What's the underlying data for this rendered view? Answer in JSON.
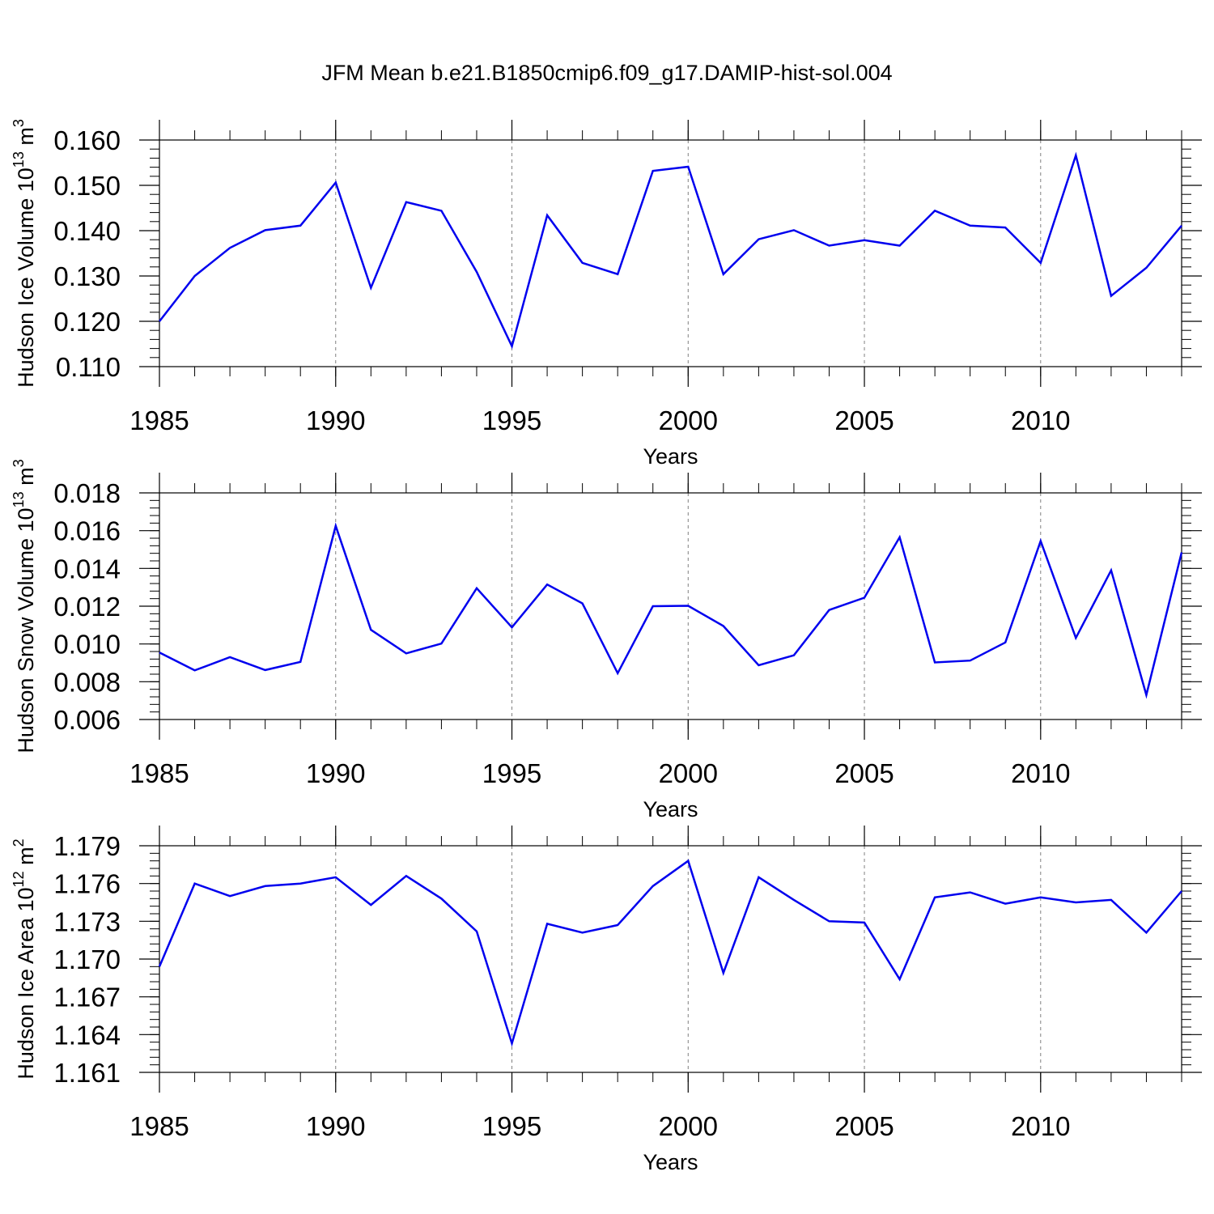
{
  "title": "JFM Mean b.e21.B1850cmip6.f09_g17.DAMIP-hist-sol.004",
  "colors": {
    "line": "#0000ee",
    "axis": "#000000",
    "grid": "#808080"
  },
  "chart_data": [
    {
      "type": "line",
      "ylabel_main": "Hudson Ice Volume 10",
      "ylabel_exp": "13",
      "ylabel_unit": "m",
      "ylabel_unit_exp": "3",
      "xlabel": "Years",
      "xlim": [
        1985,
        2014
      ],
      "ylim": [
        0.11,
        0.16
      ],
      "x_ticks": [
        1985,
        1990,
        1995,
        2000,
        2005,
        2010
      ],
      "x_tick_labels": [
        "1985",
        "1990",
        "1995",
        "2000",
        "2005",
        "2010"
      ],
      "y_ticks": [
        0.11,
        0.12,
        0.13,
        0.14,
        0.15,
        0.16
      ],
      "y_tick_labels": [
        "0.110",
        "0.120",
        "0.130",
        "0.140",
        "0.150",
        "0.160"
      ],
      "grid_x": [
        1990,
        1995,
        2000,
        2005,
        2010
      ],
      "series": [
        {
          "name": "Hudson Ice Volume",
          "x": [
            1985,
            1986,
            1987,
            1988,
            1989,
            1990,
            1991,
            1992,
            1993,
            1994,
            1995,
            1996,
            1997,
            1998,
            1999,
            2000,
            2001,
            2002,
            2003,
            2004,
            2005,
            2006,
            2007,
            2008,
            2009,
            2010,
            2011,
            2012,
            2013,
            2014
          ],
          "values": [
            0.12,
            0.13,
            0.1362,
            0.1401,
            0.1411,
            0.1506,
            0.1274,
            0.1463,
            0.1444,
            0.1309,
            0.1145,
            0.1434,
            0.1329,
            0.1304,
            0.1532,
            0.1541,
            0.1304,
            0.1381,
            0.1401,
            0.1367,
            0.1379,
            0.1367,
            0.1444,
            0.1411,
            0.1407,
            0.1329,
            0.1566,
            0.1256,
            0.1318,
            0.1411
          ]
        }
      ]
    },
    {
      "type": "line",
      "ylabel_main": "Hudson Snow Volume 10",
      "ylabel_exp": "13",
      "ylabel_unit": "m",
      "ylabel_unit_exp": "3",
      "xlabel": "Years",
      "xlim": [
        1985,
        2014
      ],
      "ylim": [
        0.006,
        0.018
      ],
      "x_ticks": [
        1985,
        1990,
        1995,
        2000,
        2005,
        2010
      ],
      "x_tick_labels": [
        "1985",
        "1990",
        "1995",
        "2000",
        "2005",
        "2010"
      ],
      "y_ticks": [
        0.006,
        0.008,
        0.01,
        0.012,
        0.014,
        0.016,
        0.018
      ],
      "y_tick_labels": [
        "0.006",
        "0.008",
        "0.010",
        "0.012",
        "0.014",
        "0.016",
        "0.018"
      ],
      "grid_x": [
        1990,
        1995,
        2000,
        2005,
        2010
      ],
      "series": [
        {
          "name": "Hudson Snow Volume",
          "x": [
            1985,
            1986,
            1987,
            1988,
            1989,
            1990,
            1991,
            1992,
            1993,
            1994,
            1995,
            1996,
            1997,
            1998,
            1999,
            2000,
            2001,
            2002,
            2003,
            2004,
            2005,
            2006,
            2007,
            2008,
            2009,
            2010,
            2011,
            2012,
            2013,
            2014
          ],
          "values": [
            0.00955,
            0.0086,
            0.0093,
            0.00862,
            0.00905,
            0.01625,
            0.01075,
            0.0095,
            0.01002,
            0.01295,
            0.01088,
            0.01315,
            0.01215,
            0.00845,
            0.012,
            0.01202,
            0.01095,
            0.00887,
            0.0094,
            0.0118,
            0.01245,
            0.01565,
            0.00902,
            0.00912,
            0.01008,
            0.01545,
            0.01032,
            0.0139,
            0.0073,
            0.01485
          ]
        }
      ]
    },
    {
      "type": "line",
      "ylabel_main": "Hudson Ice Area 10",
      "ylabel_exp": "12",
      "ylabel_unit": "m",
      "ylabel_unit_exp": "2",
      "xlabel": "Years",
      "xlim": [
        1985,
        2014
      ],
      "ylim": [
        1.161,
        1.179
      ],
      "x_ticks": [
        1985,
        1990,
        1995,
        2000,
        2005,
        2010
      ],
      "x_tick_labels": [
        "1985",
        "1990",
        "1995",
        "2000",
        "2005",
        "2010"
      ],
      "y_ticks": [
        1.161,
        1.164,
        1.167,
        1.17,
        1.173,
        1.176,
        1.179
      ],
      "y_tick_labels": [
        "1.161",
        "1.164",
        "1.167",
        "1.170",
        "1.173",
        "1.176",
        "1.179"
      ],
      "grid_x": [
        1990,
        1995,
        2000,
        2005,
        2010
      ],
      "series": [
        {
          "name": "Hudson Ice Area",
          "x": [
            1985,
            1986,
            1987,
            1988,
            1989,
            1990,
            1991,
            1992,
            1993,
            1994,
            1995,
            1996,
            1997,
            1998,
            1999,
            2000,
            2001,
            2002,
            2003,
            2004,
            2005,
            2006,
            2007,
            2008,
            2009,
            2010,
            2011,
            2012,
            2013,
            2014
          ],
          "values": [
            1.1694,
            1.176,
            1.175,
            1.1758,
            1.176,
            1.1765,
            1.1743,
            1.1766,
            1.1748,
            1.1722,
            1.1633,
            1.1728,
            1.1721,
            1.1727,
            1.1758,
            1.1778,
            1.1689,
            1.1765,
            1.1747,
            1.173,
            1.1729,
            1.1684,
            1.1749,
            1.1753,
            1.1744,
            1.1749,
            1.1745,
            1.1747,
            1.1721,
            1.1754
          ]
        }
      ]
    }
  ]
}
